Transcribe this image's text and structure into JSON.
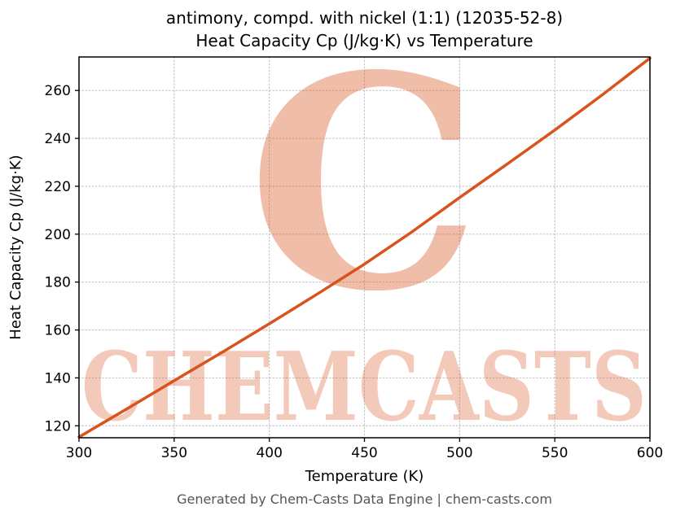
{
  "title": {
    "line1": "antimony, compd. with nickel (1:1) (12035-52-8)",
    "line2": "Heat Capacity Cp (J/kg·K) vs Temperature"
  },
  "footer": "Generated by Chem-Casts Data Engine | chem-casts.com",
  "watermark": {
    "letter": "C",
    "text": "CHEMCASTS",
    "color": "#d9531e",
    "letter_opacity": 0.38,
    "text_opacity": 0.3
  },
  "chart_data": {
    "type": "line",
    "title": "antimony, compd. with nickel (1:1) (12035-52-8)\nHeat Capacity Cp (J/kg·K) vs Temperature",
    "xlabel": "Temperature (K)",
    "ylabel": "Heat Capacity Cp (J/kg·K)",
    "xlim": [
      300,
      600
    ],
    "ylim": [
      115,
      274
    ],
    "xticks": [
      300,
      350,
      400,
      450,
      500,
      550,
      600
    ],
    "yticks": [
      120,
      140,
      160,
      180,
      200,
      220,
      240,
      260
    ],
    "grid": true,
    "grid_color": "#c6c6c6",
    "line_color": "#d9531e",
    "line_width": 3.5,
    "legend": "none",
    "series": [
      {
        "name": "Heat Capacity Cp",
        "x": [
          300,
          325,
          350,
          375,
          400,
          425,
          450,
          475,
          500,
          525,
          550,
          575,
          600
        ],
        "y": [
          115.3,
          127.0,
          138.8,
          150.6,
          162.6,
          174.9,
          187.5,
          201.0,
          215.3,
          229.3,
          243.5,
          258.2,
          273.5
        ]
      }
    ]
  }
}
